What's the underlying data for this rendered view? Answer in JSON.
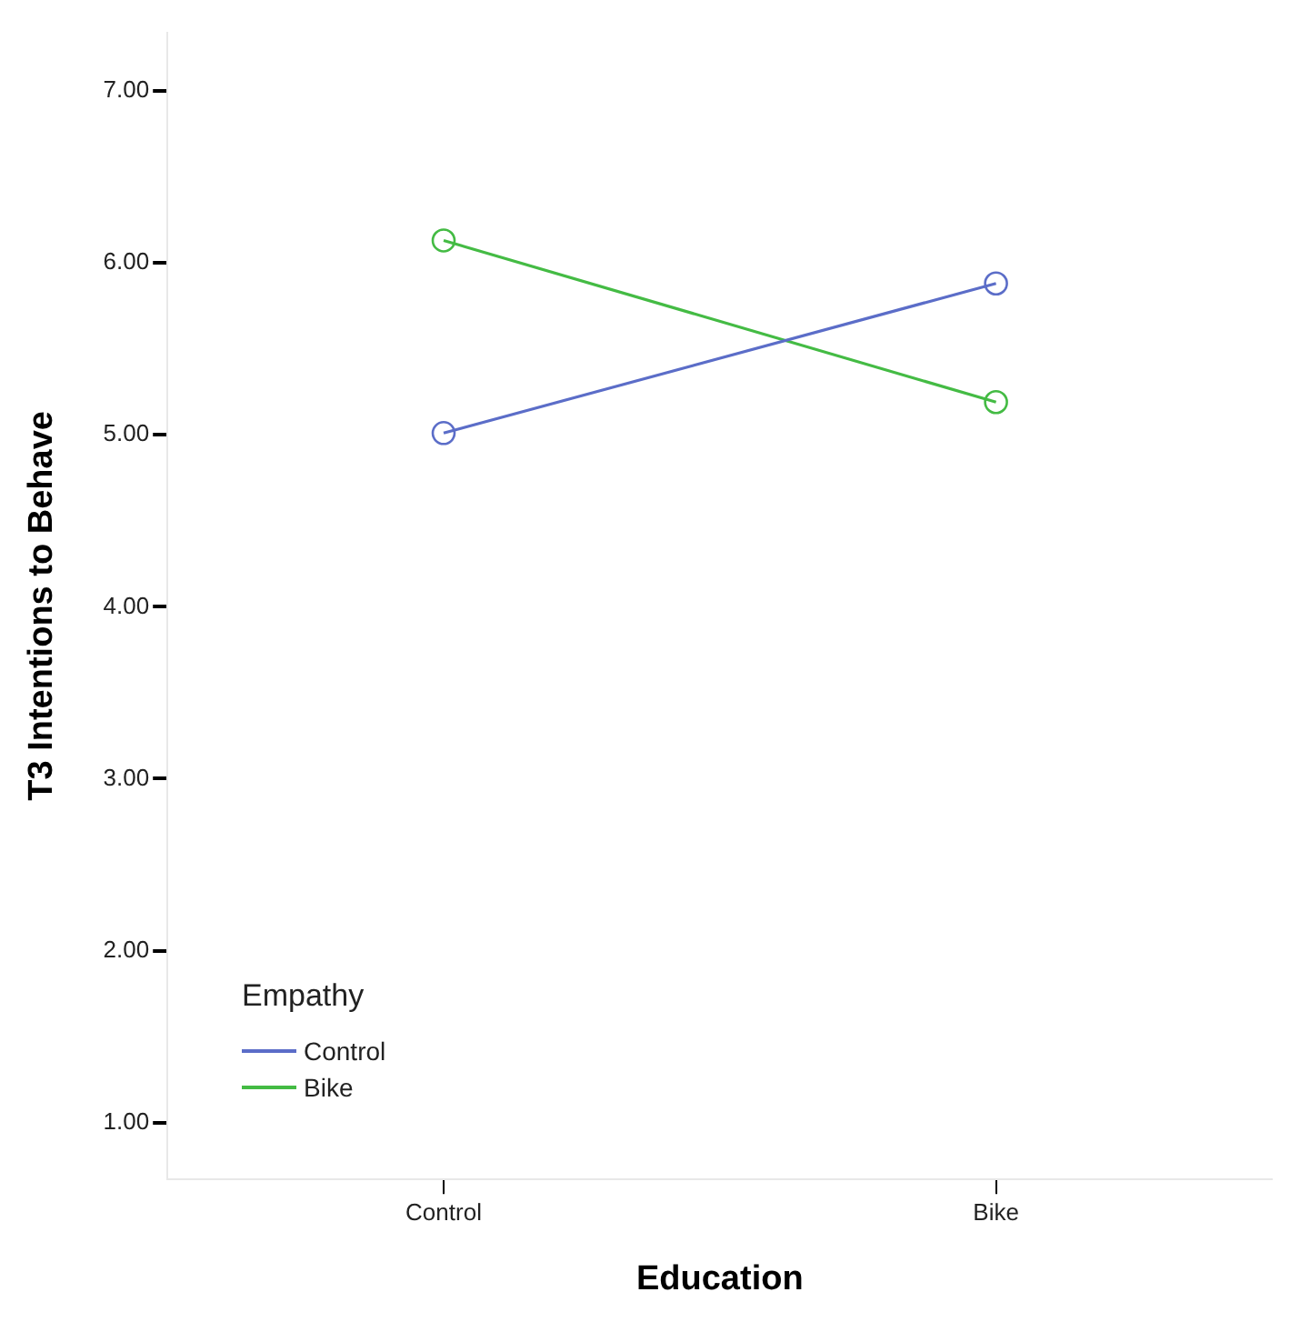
{
  "chart_data": {
    "type": "line",
    "xlabel": "Education",
    "ylabel": "T3 Intentions to Behave",
    "legend_title": "Empathy",
    "categories": [
      "Control",
      "Bike"
    ],
    "series": [
      {
        "name": "Control",
        "color": "#5b6dc8",
        "values": [
          5.01,
          5.88
        ]
      },
      {
        "name": "Bike",
        "color": "#44bb44",
        "values": [
          6.13,
          5.19
        ]
      }
    ],
    "ylim": [
      0.67,
      7.34
    ],
    "yticks": [
      {
        "value": 1,
        "label": "1.00"
      },
      {
        "value": 2,
        "label": "2.00"
      },
      {
        "value": 3,
        "label": "3.00"
      },
      {
        "value": 4,
        "label": "4.00"
      },
      {
        "value": 5,
        "label": "5.00"
      },
      {
        "value": 6,
        "label": "6.00"
      },
      {
        "value": 7,
        "label": "7.00"
      }
    ],
    "grid": false,
    "legend": "bottom left",
    "marker": "circle",
    "line_style": "solid"
  }
}
